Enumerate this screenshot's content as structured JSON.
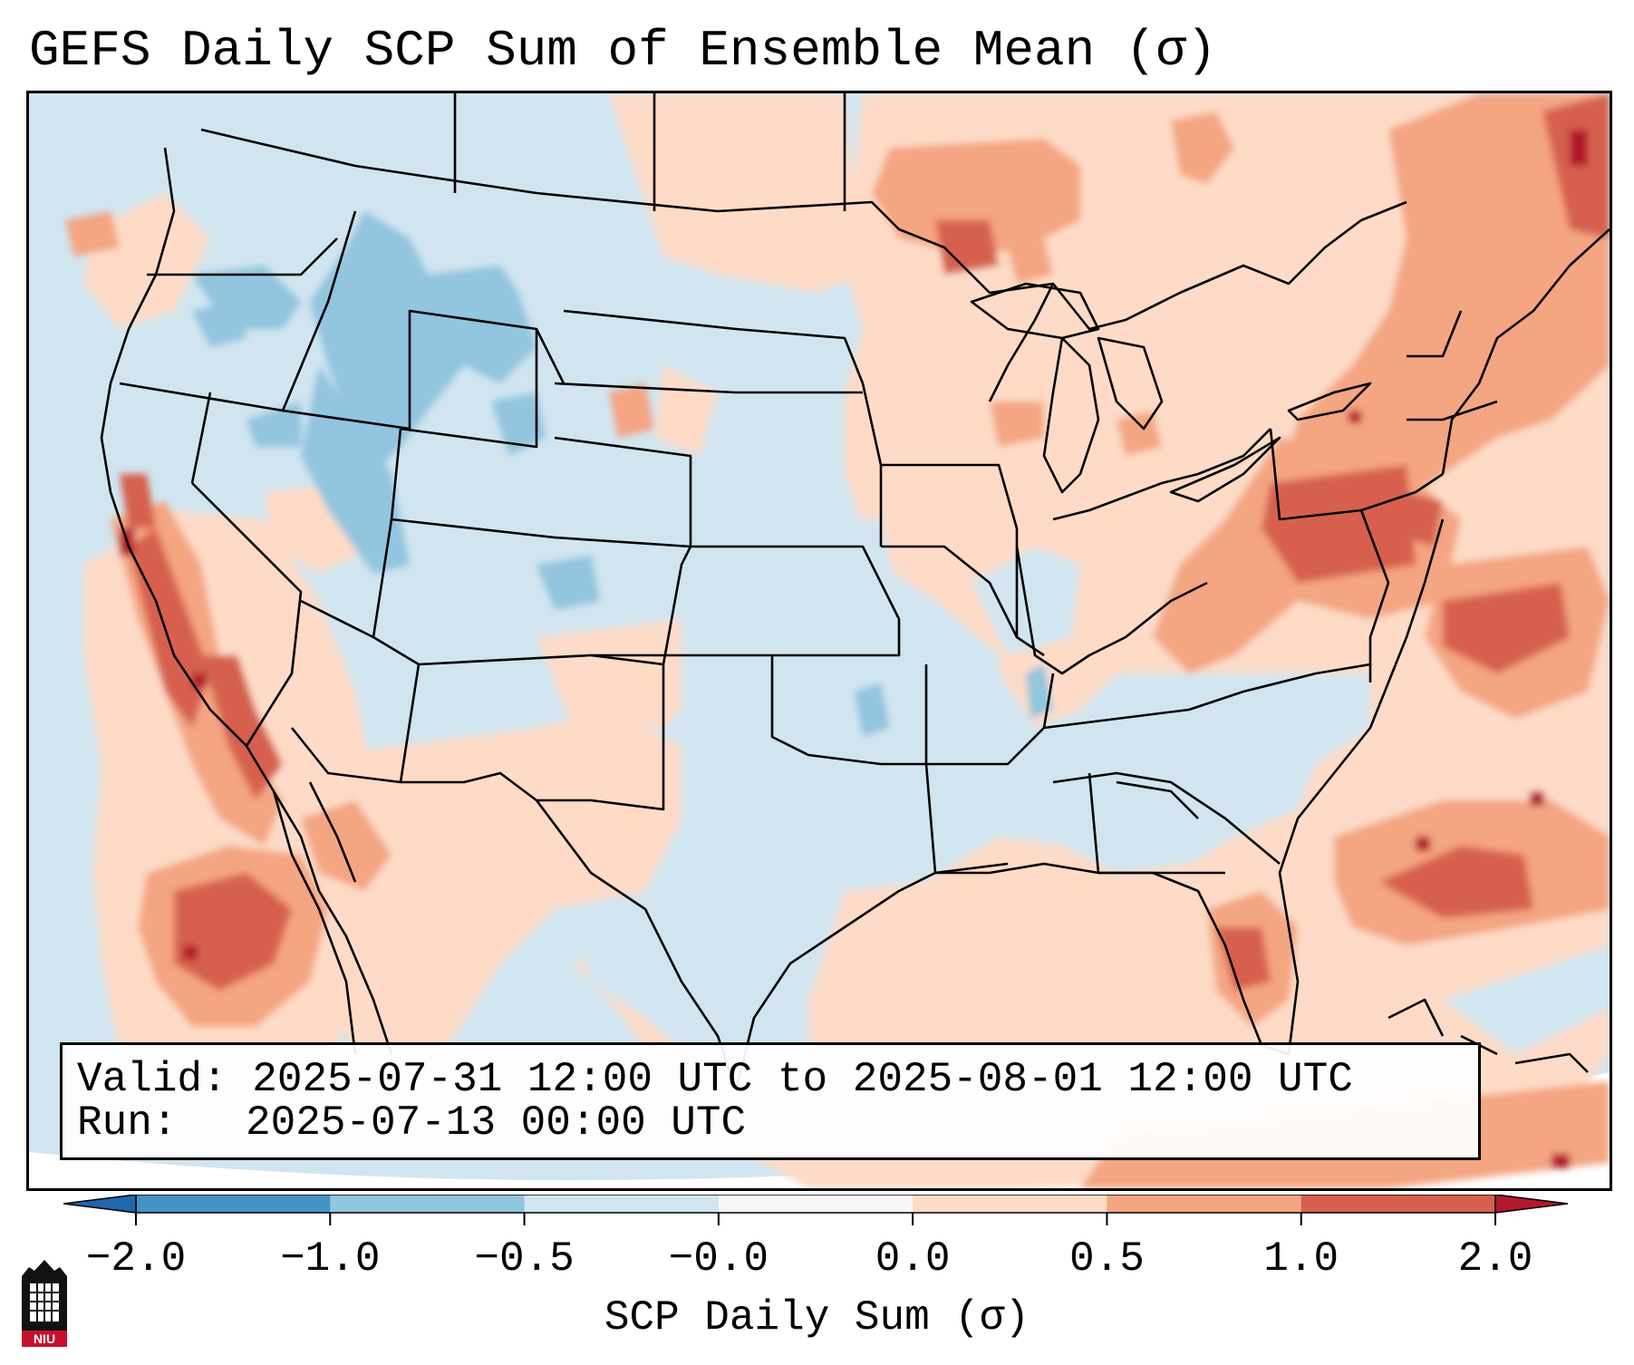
{
  "title": "GEFS Daily SCP Sum of Ensemble Mean (σ)",
  "info": {
    "valid_label": "Valid:",
    "valid_value": "2025-07-31 12:00 UTC to 2025-08-01 12:00 UTC",
    "run_label": "Run:",
    "run_value": "2025-07-13 00:00 UTC"
  },
  "colorbar": {
    "label": "SCP Daily Sum (σ)",
    "ticks": [
      "−2.0",
      "−1.0",
      "−0.5",
      "−0.0",
      "0.0",
      "0.5",
      "1.0",
      "2.0"
    ],
    "bins": [
      {
        "from": "-2.0",
        "to": "-1.0",
        "color": "#4393c3"
      },
      {
        "from": "-1.0",
        "to": "-0.5",
        "color": "#92c5de"
      },
      {
        "from": "-0.5",
        "to": "-0.0",
        "color": "#d1e5f0"
      },
      {
        "from": "-0.0",
        "to": "0.0",
        "color": "#f7f7f7"
      },
      {
        "from": "0.0",
        "to": "0.5",
        "color": "#fddbc7"
      },
      {
        "from": "0.5",
        "to": "1.0",
        "color": "#f4a582"
      },
      {
        "from": "1.0",
        "to": "2.0",
        "color": "#d6604d"
      }
    ],
    "extend_low_color": "#2166ac",
    "extend_high_color": "#b2182b"
  },
  "map": {
    "projection": "Lambert Conformal, CONUS",
    "background_color": "#d1e5f0",
    "colors": {
      "light_blue": "#d1e5f0",
      "mid_blue": "#92c5de",
      "light_red": "#fddbc7",
      "mid_red": "#f4a582",
      "strong_red": "#d6604d",
      "dark_red": "#b2182b",
      "white": "#f7f7f7"
    }
  },
  "logo": {
    "text": "NIU",
    "icon": "niu-shield-icon",
    "color": "#c8102e"
  }
}
